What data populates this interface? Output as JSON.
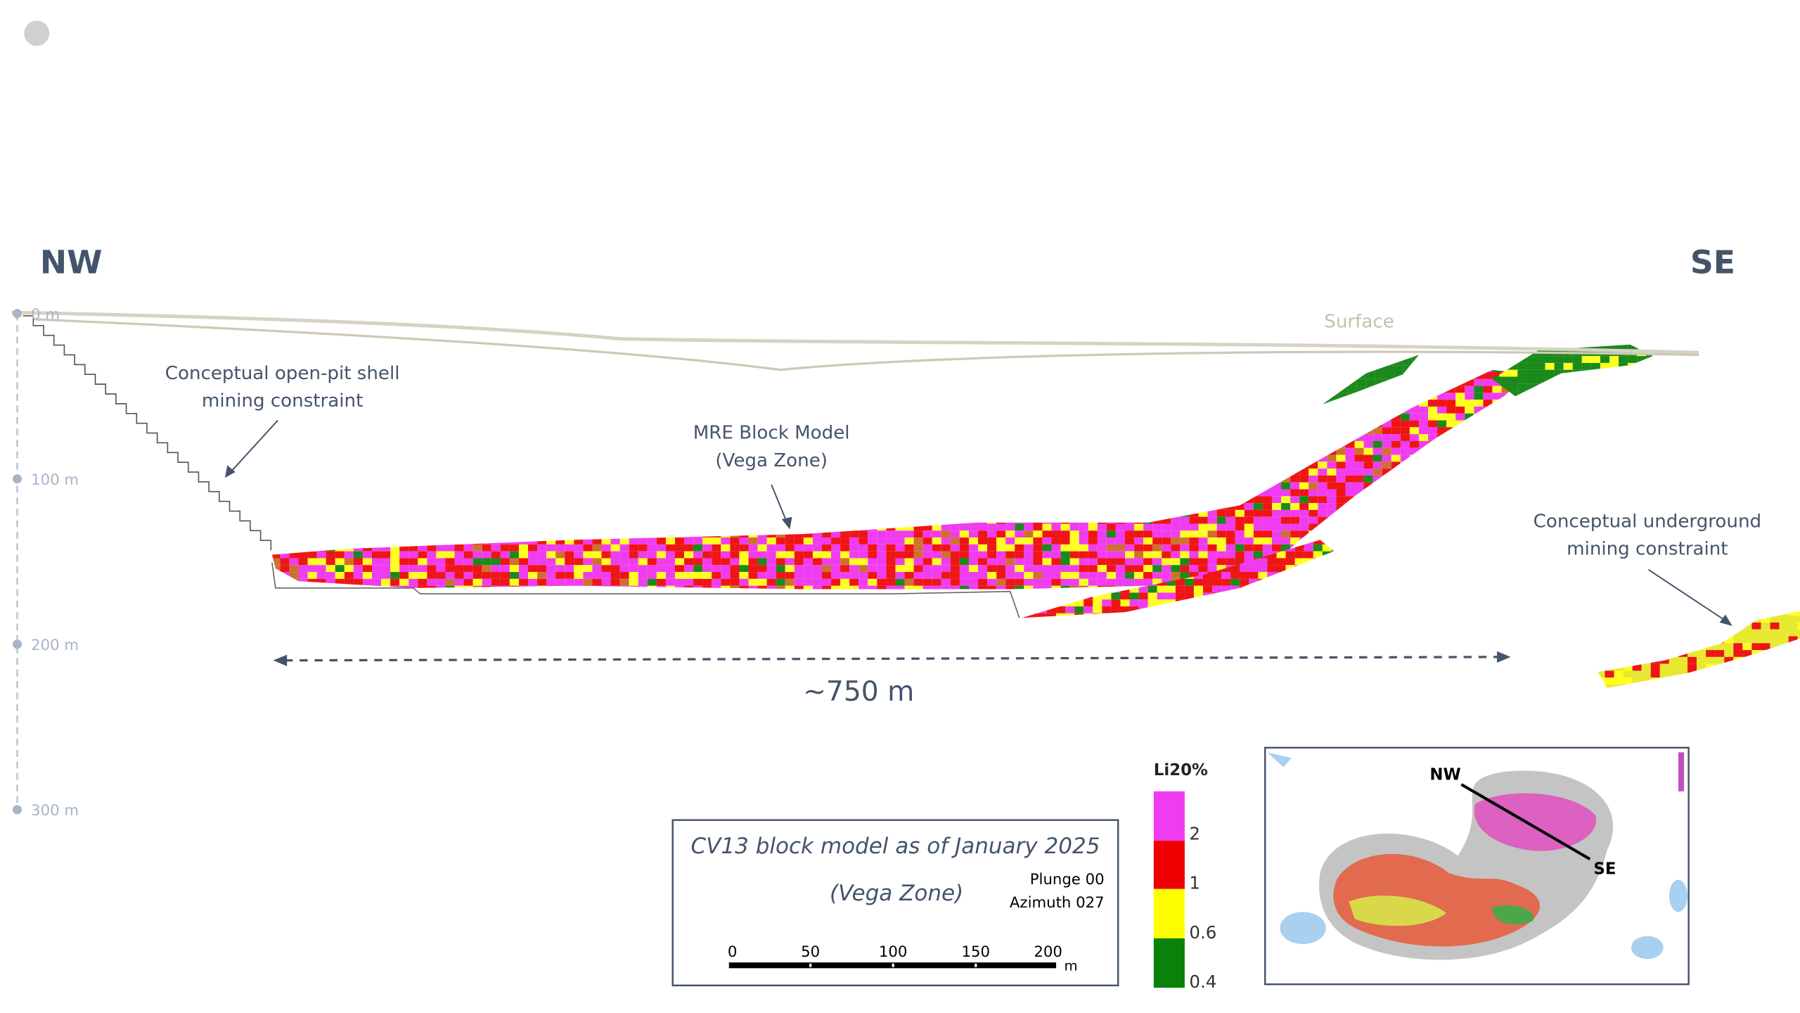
{
  "section": {
    "left_label": "NW",
    "right_label": "SE",
    "surface_label": "Surface",
    "depth_labels": [
      "0 m",
      "100 m",
      "200 m",
      "300 m"
    ],
    "annotations": {
      "open_pit": [
        "Conceptual open-pit shell",
        "mining constraint"
      ],
      "block_model": [
        "MRE Block Model",
        "(Vega Zone)"
      ],
      "underground": [
        "Conceptual underground",
        "mining constraint"
      ],
      "length": "~750 m"
    }
  },
  "title_box": {
    "title": "CV13 block model as of January 2025",
    "subtitle": "(Vega Zone)",
    "plunge": "Plunge 00",
    "azimuth": "Azimuth 027",
    "scale_labels": [
      "0",
      "50",
      "100",
      "150",
      "200"
    ],
    "scale_unit": "m"
  },
  "legend": {
    "title": "Li20%",
    "labels": [
      "2",
      "1",
      "0.6",
      "0.4"
    ]
  },
  "inset": {
    "nw": "NW",
    "se": "SE"
  }
}
